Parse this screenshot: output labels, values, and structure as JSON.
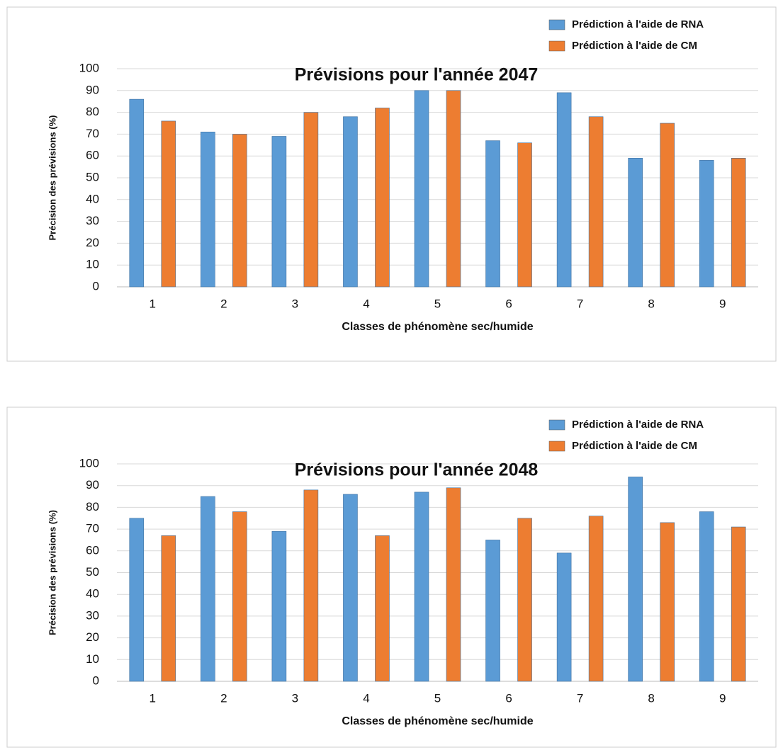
{
  "chart_data": [
    {
      "type": "bar",
      "title": "Prévisions pour l'année 2047",
      "xlabel": "Classes de phénomène sec/humide",
      "ylabel": "Précision des prévisions (%)",
      "categories": [
        "1",
        "2",
        "3",
        "4",
        "5",
        "6",
        "7",
        "8",
        "9"
      ],
      "series": [
        {
          "name": "Prédiction à l'aide de RNA",
          "color": "#5b9bd5",
          "values": [
            86,
            71,
            69,
            78,
            90,
            67,
            89,
            59,
            58
          ]
        },
        {
          "name": "Prédiction à l'aide de CM",
          "color": "#ed7d31",
          "values": [
            76,
            70,
            80,
            82,
            90,
            66,
            78,
            75,
            59
          ]
        }
      ],
      "ylim": [
        0,
        100
      ],
      "yticks": [
        0,
        10,
        20,
        30,
        40,
        50,
        60,
        70,
        80,
        90,
        100
      ],
      "grid": true,
      "legend": "upper right"
    },
    {
      "type": "bar",
      "title": "Prévisions pour l'année 2048",
      "xlabel": "Classes de phénomène sec/humide",
      "ylabel": "Précision des prévisions (%)",
      "categories": [
        "1",
        "2",
        "3",
        "4",
        "5",
        "6",
        "7",
        "8",
        "9"
      ],
      "series": [
        {
          "name": "Prédiction à l'aide de RNA",
          "color": "#5b9bd5",
          "values": [
            75,
            85,
            69,
            86,
            87,
            65,
            59,
            94,
            78
          ]
        },
        {
          "name": "Prédiction à l'aide de CM",
          "color": "#ed7d31",
          "values": [
            67,
            78,
            88,
            67,
            89,
            75,
            76,
            73,
            71
          ]
        }
      ],
      "ylim": [
        0,
        100
      ],
      "yticks": [
        0,
        10,
        20,
        30,
        40,
        50,
        60,
        70,
        80,
        90,
        100
      ],
      "grid": true,
      "legend": "upper right"
    }
  ]
}
